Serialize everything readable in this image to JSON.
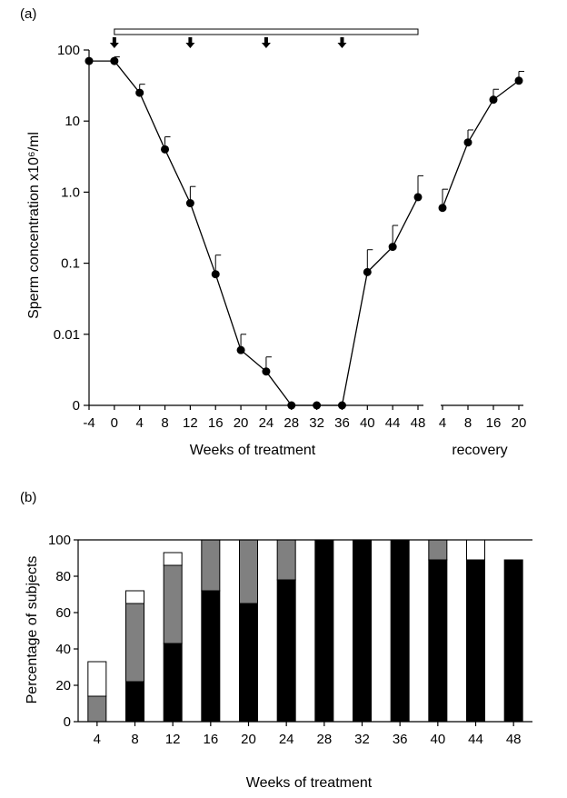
{
  "chart_data": [
    {
      "panel_label": "(a)",
      "type": "line",
      "xlabel": "Weeks of treatment",
      "xlabel_recovery": "recovery",
      "ylabel": "Sperm concentration x10⁶/ml",
      "yscale": "log",
      "ylim": [
        0.001,
        100
      ],
      "y_ticks": [
        {
          "value": 0.001,
          "label": "0"
        },
        {
          "value": 0.01,
          "label": "0.01"
        },
        {
          "value": 0.1,
          "label": "0.1"
        },
        {
          "value": 1,
          "label": "1.0"
        },
        {
          "value": 10,
          "label": "10"
        },
        {
          "value": 100,
          "label": "100"
        }
      ],
      "treatment_series": {
        "x": [
          -4,
          0,
          4,
          8,
          12,
          16,
          20,
          24,
          28,
          32,
          36,
          40,
          44,
          48
        ],
        "x_tick_labels": [
          "-4",
          "0",
          "4",
          "8",
          "12",
          "16",
          "20",
          "24",
          "28",
          "32",
          "36",
          "40",
          "44",
          "48"
        ],
        "y": [
          70,
          70,
          25,
          4,
          0.7,
          0.07,
          0.006,
          0.003,
          0.001,
          0.001,
          0.001,
          0.075,
          0.17,
          0.85
        ],
        "error_upper": [
          null,
          80,
          33,
          6,
          1.2,
          0.13,
          0.01,
          0.0048,
          null,
          null,
          null,
          0.155,
          0.34,
          1.7
        ]
      },
      "recovery_series": {
        "x": [
          4,
          8,
          16,
          20
        ],
        "x_tick_labels": [
          "4",
          "8",
          "16",
          "20"
        ],
        "y": [
          0.6,
          5,
          20,
          37
        ],
        "error_upper": [
          1.1,
          7.5,
          28,
          50
        ]
      },
      "treatment_bar_range": [
        0,
        48
      ],
      "injection_arrows_at_weeks": [
        0,
        12,
        24,
        36
      ]
    },
    {
      "panel_label": "(b)",
      "type": "bar",
      "stacked": true,
      "xlabel": "Weeks of treatment",
      "ylabel": "Percentage of subjects",
      "ylim": [
        0,
        100
      ],
      "y_ticks": [
        0,
        20,
        40,
        60,
        80,
        100
      ],
      "categories": [
        "4",
        "8",
        "12",
        "16",
        "20",
        "24",
        "28",
        "32",
        "36",
        "40",
        "44",
        "48"
      ],
      "series": [
        {
          "color": "#000000",
          "values": [
            0,
            22,
            43,
            72,
            65,
            78,
            100,
            100,
            100,
            89,
            89,
            89
          ]
        },
        {
          "color": "#808080",
          "values": [
            14,
            43,
            43,
            28,
            35,
            22,
            0,
            0,
            0,
            11,
            0,
            0
          ]
        },
        {
          "color": "#ffffff",
          "values": [
            19,
            7,
            7,
            0,
            0,
            0,
            0,
            0,
            0,
            0,
            11,
            0
          ]
        }
      ]
    }
  ]
}
